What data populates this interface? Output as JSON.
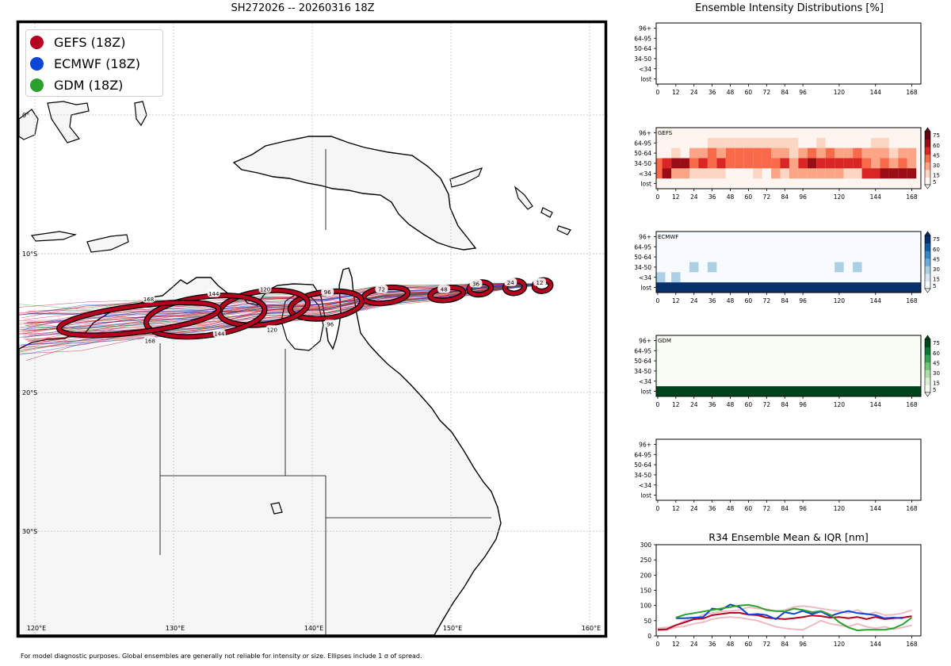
{
  "map_title": "SH272026 -- 20260316 18Z",
  "side_title": "Ensemble Intensity Distributions [%]",
  "r34_title": "R34 Ensemble Mean & IQR [nm]",
  "footer": "For model diagnostic purposes. Global ensembles are generally not reliable for intensity or size. Ellipses include 1 σ of spread.",
  "legend": [
    {
      "label": "GEFS (18Z)",
      "color": "#b5001f"
    },
    {
      "label": "ECMWF (18Z)",
      "color": "#0b45d8"
    },
    {
      "label": "GDM (18Z)",
      "color": "#2ca02c"
    }
  ],
  "map_ticks": {
    "lon": [
      "120°E",
      "130°E",
      "140°E",
      "150°E",
      "160°E"
    ],
    "lat": [
      "0°",
      "10°S",
      "20°S",
      "30°S"
    ]
  },
  "colors": {
    "gefs": "#b5001f",
    "ecmwf": "#0b45d8",
    "gdm": "#2ca02c"
  },
  "chart_data": [
    {
      "type": "map",
      "title": "SH272026 -- 20260316 18Z",
      "projection_extent": {
        "lon": [
          118,
          161
        ],
        "lat": [
          -37,
          2
        ]
      },
      "track_forecast_hour_labels_gefs": [
        {
          "hour": 12,
          "lon": 156.4,
          "lat": -12.1
        },
        {
          "hour": 24,
          "lon": 154.3,
          "lat": -12.1
        },
        {
          "hour": 36,
          "lon": 151.8,
          "lat": -12.2
        },
        {
          "hour": 48,
          "lon": 149.5,
          "lat": -12.6
        },
        {
          "hour": 72,
          "lon": 145.0,
          "lat": -12.6
        },
        {
          "hour": 96,
          "lon": 141.1,
          "lat": -12.8
        },
        {
          "hour": 120,
          "lon": 136.6,
          "lat": -12.6
        },
        {
          "hour": 144,
          "lon": 132.9,
          "lat": -12.9
        },
        {
          "hour": 168,
          "lon": 128.2,
          "lat": -13.3
        }
      ],
      "track_forecast_hour_labels_lower": [
        {
          "hour": 96,
          "lon": 141.3,
          "lat": -15.1
        },
        {
          "hour": 120,
          "lon": 137.1,
          "lat": -15.5
        },
        {
          "hour": 144,
          "lon": 133.3,
          "lat": -15.8
        },
        {
          "hour": 168,
          "lon": 128.3,
          "lat": -16.3
        }
      ],
      "ellipses_gefs": [
        {
          "hour": 12,
          "lon": 156.6,
          "lat": -12.3,
          "rx_deg": 0.6,
          "ry_deg": 0.4
        },
        {
          "hour": 24,
          "lon": 154.6,
          "lat": -12.4,
          "rx_deg": 0.7,
          "ry_deg": 0.45
        },
        {
          "hour": 36,
          "lon": 152.1,
          "lat": -12.5,
          "rx_deg": 0.8,
          "ry_deg": 0.45
        },
        {
          "hour": 48,
          "lon": 149.7,
          "lat": -12.9,
          "rx_deg": 1.2,
          "ry_deg": 0.45
        },
        {
          "hour": 72,
          "lon": 145.3,
          "lat": -13.0,
          "rx_deg": 1.6,
          "ry_deg": 0.55
        },
        {
          "hour": 96,
          "lon": 141.0,
          "lat": -13.7,
          "rx_deg": 2.6,
          "ry_deg": 0.95
        },
        {
          "hour": 120,
          "lon": 136.5,
          "lat": -13.9,
          "rx_deg": 3.2,
          "ry_deg": 1.2
        },
        {
          "hour": 144,
          "lon": 132.3,
          "lat": -14.5,
          "rx_deg": 4.3,
          "ry_deg": 1.4
        },
        {
          "hour": 168,
          "lon": 127.5,
          "lat": -14.7,
          "rx_deg": 5.8,
          "ry_deg": 0.95
        }
      ]
    },
    {
      "type": "heatmap",
      "panel": "top-empty",
      "ylabels": [
        "96+",
        "64-95",
        "50-64",
        "34-50",
        "<34",
        "lost"
      ],
      "xticks": [
        0,
        12,
        24,
        36,
        48,
        60,
        72,
        84,
        96,
        120,
        144,
        168
      ],
      "xlim": [
        -1,
        174
      ],
      "cells": []
    },
    {
      "type": "heatmap",
      "panel": "GEFS",
      "label": "GEFS",
      "cmap": "reds",
      "colorbar_ticks": [
        5,
        15,
        30,
        45,
        60,
        75
      ],
      "ylabels": [
        "96+",
        "64-95",
        "50-64",
        "34-50",
        "<34",
        "lost"
      ],
      "xticks": [
        0,
        12,
        24,
        36,
        48,
        60,
        72,
        84,
        96,
        120,
        144,
        168
      ],
      "xlim": [
        -1,
        174
      ],
      "hours": [
        0,
        6,
        12,
        18,
        24,
        30,
        36,
        42,
        48,
        54,
        60,
        66,
        72,
        78,
        84,
        90,
        96,
        102,
        108,
        114,
        120,
        126,
        132,
        138,
        144,
        150,
        156,
        162,
        168
      ],
      "rows": {
        "64-95": [
          3,
          3,
          3,
          3,
          3,
          3,
          10,
          10,
          10,
          10,
          10,
          10,
          10,
          10,
          10,
          10,
          5,
          5,
          10,
          3,
          5,
          5,
          3,
          3,
          10,
          10,
          3,
          3,
          3
        ],
        "50-64": [
          3,
          3,
          15,
          3,
          25,
          20,
          45,
          20,
          35,
          35,
          35,
          35,
          45,
          25,
          25,
          15,
          20,
          35,
          20,
          35,
          20,
          20,
          35,
          20,
          20,
          20,
          15,
          20,
          20
        ],
        "34-50": [
          40,
          55,
          70,
          60,
          45,
          55,
          40,
          55,
          40,
          40,
          40,
          35,
          35,
          35,
          55,
          30,
          50,
          60,
          50,
          50,
          50,
          50,
          55,
          35,
          30,
          35,
          30,
          35,
          30
        ],
        "<34": [
          40,
          60,
          25,
          25,
          10,
          10,
          10,
          10,
          5,
          5,
          5,
          15,
          5,
          25,
          15,
          25,
          25,
          25,
          25,
          25,
          25,
          15,
          15,
          55,
          55,
          60,
          70,
          60,
          60
        ],
        "lost": [
          0,
          0,
          0,
          0,
          0,
          0,
          0,
          0,
          0,
          0,
          0,
          0,
          0,
          0,
          0,
          0,
          0,
          0,
          0,
          0,
          0,
          0,
          0,
          0,
          0,
          0,
          0,
          0,
          0
        ]
      }
    },
    {
      "type": "heatmap",
      "panel": "ECMWF",
      "label": "ECMWF",
      "cmap": "blues",
      "colorbar_ticks": [
        5,
        15,
        30,
        45,
        60,
        75
      ],
      "ylabels": [
        "96+",
        "64-95",
        "50-64",
        "34-50",
        "<34",
        "lost"
      ],
      "xticks": [
        0,
        12,
        24,
        36,
        48,
        60,
        72,
        84,
        96,
        120,
        144,
        168
      ],
      "xlim": [
        -1,
        174
      ],
      "rows": {
        "34-50": {
          "24": 10,
          "36": 10,
          "120": 10,
          "132": 10
        },
        "<34": {
          "0": 10,
          "12": 10
        },
        "lost": {
          "all": 100
        }
      }
    },
    {
      "type": "heatmap",
      "panel": "GDM",
      "label": "GDM",
      "cmap": "greens",
      "colorbar_ticks": [
        5,
        15,
        30,
        45,
        60,
        75
      ],
      "ylabels": [
        "96+",
        "64-95",
        "50-64",
        "34-50",
        "<34",
        "lost"
      ],
      "xticks": [
        0,
        12,
        24,
        36,
        48,
        60,
        72,
        84,
        96,
        120,
        144,
        168
      ],
      "xlim": [
        -1,
        174
      ],
      "rows": {
        "lost": {
          "all": 100
        }
      }
    },
    {
      "type": "heatmap",
      "panel": "bottom-empty",
      "ylabels": [
        "96+",
        "64-95",
        "50-64",
        "34-50",
        "<34",
        "lost"
      ],
      "xticks": [
        0,
        12,
        24,
        36,
        48,
        60,
        72,
        84,
        96,
        120,
        144,
        168
      ],
      "xlim": [
        -1,
        174
      ],
      "cells": []
    },
    {
      "type": "line",
      "title": "R34 Ensemble Mean & IQR [nm]",
      "xlim": [
        -1,
        174
      ],
      "ylim": [
        0,
        300
      ],
      "yticks": [
        0,
        50,
        100,
        150,
        200,
        250,
        300
      ],
      "xticks": [
        0,
        12,
        24,
        36,
        48,
        60,
        72,
        84,
        96,
        120,
        144,
        168
      ],
      "x": [
        0,
        6,
        12,
        18,
        24,
        30,
        36,
        42,
        48,
        54,
        60,
        66,
        72,
        78,
        84,
        90,
        96,
        102,
        108,
        114,
        120,
        126,
        132,
        138,
        144,
        150,
        156,
        162,
        168
      ],
      "series": [
        {
          "name": "GEFS mean",
          "color": "#b5001f",
          "values": [
            20,
            22,
            35,
            45,
            55,
            57,
            68,
            72,
            76,
            76,
            70,
            68,
            60,
            57,
            55,
            58,
            62,
            67,
            65,
            60,
            62,
            58,
            62,
            55,
            62,
            55,
            58,
            60,
            65
          ]
        },
        {
          "name": "ECMWF mean",
          "color": "#0b45d8",
          "values": [
            null,
            null,
            58,
            58,
            60,
            62,
            90,
            86,
            103,
            95,
            70,
            72,
            68,
            55,
            78,
            72,
            82,
            72,
            80,
            65,
            75,
            82,
            75,
            72,
            68,
            58,
            60,
            58,
            null
          ]
        },
        {
          "name": "GDM mean",
          "color": "#2ca02c",
          "values": [
            null,
            null,
            60,
            70,
            75,
            80,
            85,
            90,
            95,
            100,
            102,
            96,
            85,
            82,
            80,
            90,
            85,
            78,
            82,
            70,
            45,
            28,
            18,
            20,
            20,
            20,
            25,
            38,
            60
          ]
        },
        {
          "name": "GEFS IQR upper",
          "color": "#e7a9b4",
          "values": [
            25,
            28,
            35,
            50,
            55,
            70,
            75,
            80,
            82,
            85,
            95,
            90,
            88,
            80,
            85,
            95,
            98,
            95,
            90,
            85,
            82,
            75,
            85,
            70,
            78,
            68,
            70,
            75,
            85
          ]
        },
        {
          "name": "GEFS IQR lower",
          "color": "#e7a9b4",
          "values": [
            18,
            20,
            28,
            32,
            40,
            45,
            55,
            60,
            62,
            60,
            55,
            50,
            40,
            30,
            25,
            22,
            20,
            35,
            50,
            40,
            35,
            30,
            40,
            30,
            25,
            30,
            22,
            28,
            35
          ]
        }
      ]
    }
  ]
}
